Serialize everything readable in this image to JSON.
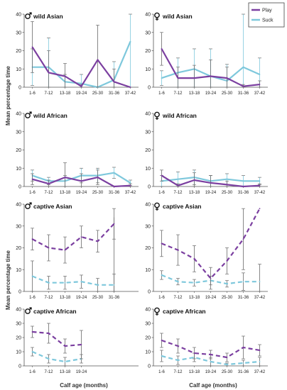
{
  "figure": {
    "ylabel": "Mean percentage time",
    "xlabel": "Calf age (months)",
    "legend": {
      "play": "Play",
      "suck": "Suck"
    },
    "colors": {
      "play": "#7b3fa0",
      "suck": "#7ec8dc",
      "error": "#6a6a6a"
    }
  },
  "chart_data": [
    {
      "type": "line",
      "title": "wild Asian",
      "sex": "male",
      "ylim": [
        0,
        40
      ],
      "yticks": [
        0,
        10,
        20,
        30,
        40
      ],
      "style": "solid",
      "categories": [
        "1-6",
        "7-12",
        "13-18",
        "19-24",
        "25-30",
        "31-36",
        "37-42"
      ],
      "series": [
        {
          "name": "Play",
          "values": [
            22,
            8,
            6,
            0.5,
            15,
            3,
            0
          ],
          "err": [
            14,
            12,
            7,
            1,
            19,
            7,
            0
          ]
        },
        {
          "name": "Suck",
          "values": [
            11,
            11,
            3,
            2,
            0,
            4,
            25
          ],
          "err": [
            10,
            16,
            4,
            5,
            0,
            10,
            38
          ]
        }
      ]
    },
    {
      "type": "line",
      "title": "wild Asian",
      "sex": "female",
      "ylim": [
        0,
        40
      ],
      "yticks": [
        0,
        10,
        20,
        30,
        40
      ],
      "style": "solid",
      "categories": [
        "1-6",
        "7-12",
        "13-18",
        "19-24",
        "25-30",
        "31-36",
        "37-42"
      ],
      "series": [
        {
          "name": "Play",
          "values": [
            21,
            5,
            5,
            6,
            5,
            0.5,
            1.5
          ],
          "err": [
            9,
            6,
            7,
            9,
            6,
            1,
            2
          ]
        },
        {
          "name": "Suck",
          "values": [
            5,
            8,
            10,
            6,
            3.5,
            11,
            7
          ],
          "err": [
            4,
            8,
            11,
            15,
            9,
            30,
            9
          ]
        }
      ]
    },
    {
      "type": "line",
      "title": "wild African",
      "sex": "male",
      "ylim": [
        0,
        40
      ],
      "yticks": [
        0,
        10,
        20,
        30,
        40
      ],
      "style": "solid",
      "categories": [
        "1-6",
        "7-12",
        "13-18",
        "19-24",
        "25-30",
        "31-36",
        "37-42"
      ],
      "series": [
        {
          "name": "Play",
          "values": [
            4,
            1.5,
            5,
            3,
            5,
            0,
            0.5
          ],
          "err": [
            3,
            2,
            8,
            4,
            4,
            0,
            1
          ]
        },
        {
          "name": "Suck",
          "values": [
            6,
            3,
            3,
            6,
            6,
            7.5,
            2
          ],
          "err": [
            3,
            2,
            3,
            4,
            4,
            3,
            1.5
          ]
        }
      ]
    },
    {
      "type": "line",
      "title": "wild African",
      "sex": "female",
      "ylim": [
        0,
        40
      ],
      "yticks": [
        0,
        10,
        20,
        30,
        40
      ],
      "style": "solid",
      "categories": [
        "1-6",
        "7-12",
        "13-18",
        "19-24",
        "25-30",
        "31-36",
        "37-42"
      ],
      "series": [
        {
          "name": "Play",
          "values": [
            6,
            0.5,
            3.5,
            2,
            1,
            0,
            0.5
          ],
          "err": [
            3,
            1,
            4,
            4,
            2,
            0,
            1
          ]
        },
        {
          "name": "Suck",
          "values": [
            3,
            4,
            5,
            3,
            4,
            3,
            3
          ],
          "err": [
            3,
            4,
            4,
            3,
            3,
            3,
            2
          ]
        }
      ]
    },
    {
      "type": "line",
      "title": "captive Asian",
      "sex": "male",
      "ylim": [
        0,
        40
      ],
      "yticks": [
        0,
        10,
        20,
        30,
        40
      ],
      "style": "dashed",
      "categories": [
        "1-6",
        "7-12",
        "13-18",
        "19-24",
        "25-30",
        "31-36"
      ],
      "series": [
        {
          "name": "Play",
          "values": [
            24,
            20,
            19,
            25,
            23,
            31
          ],
          "err": [
            5,
            6,
            6,
            5,
            5,
            7
          ]
        },
        {
          "name": "Suck",
          "values": [
            7,
            4,
            4,
            4.5,
            3,
            3
          ],
          "err": [
            7,
            3,
            3,
            3,
            3,
            5
          ]
        }
      ],
      "extra_bars": [
        {
          "x": 5,
          "lo": 0,
          "hi": 34
        }
      ]
    },
    {
      "type": "line",
      "title": "captive Asian",
      "sex": "female",
      "ylim": [
        0,
        40
      ],
      "yticks": [
        0,
        10,
        20,
        30,
        40
      ],
      "style": "dashed",
      "categories": [
        "1-6",
        "7-12",
        "13-18",
        "19-24",
        "25-30",
        "31-36",
        "37-42"
      ],
      "series": [
        {
          "name": "Play",
          "values": [
            22,
            19,
            15,
            6,
            14,
            24,
            38
          ],
          "err": [
            6,
            7,
            6,
            5,
            6,
            14,
            0
          ]
        },
        {
          "name": "Suck",
          "values": [
            7.5,
            4.5,
            4,
            5,
            3.5,
            4.5,
            4.5
          ],
          "err": [
            2,
            1.5,
            1.5,
            2,
            1.5,
            4,
            8
          ]
        }
      ]
    },
    {
      "type": "line",
      "title": "captive African",
      "sex": "male",
      "ylim": [
        0,
        40
      ],
      "yticks": [
        0,
        10,
        20,
        30,
        40
      ],
      "style": "dashed",
      "categories": [
        "1-6",
        "7-12",
        "13-18",
        "19-24"
      ],
      "series": [
        {
          "name": "Play",
          "values": [
            24,
            23,
            14,
            15
          ],
          "err": [
            4,
            7,
            5,
            10
          ]
        },
        {
          "name": "Suck",
          "values": [
            10,
            5,
            3,
            5
          ],
          "err": [
            3,
            3,
            3,
            3
          ]
        }
      ]
    },
    {
      "type": "line",
      "title": "captive African",
      "sex": "female",
      "ylim": [
        0,
        40
      ],
      "yticks": [
        0,
        10,
        20,
        30,
        40
      ],
      "style": "dashed",
      "categories": [
        "1-6",
        "7-12",
        "13-18",
        "19-24",
        "25-30",
        "31-36",
        "37-42"
      ],
      "series": [
        {
          "name": "Play",
          "values": [
            18,
            14,
            9,
            8,
            6,
            13,
            11
          ],
          "err": [
            5,
            5,
            4,
            3,
            3,
            8,
            4
          ]
        },
        {
          "name": "Suck",
          "values": [
            7,
            4,
            6,
            3,
            1,
            2,
            3
          ],
          "err": [
            4,
            3,
            3,
            3,
            1,
            2,
            3
          ]
        }
      ]
    }
  ]
}
